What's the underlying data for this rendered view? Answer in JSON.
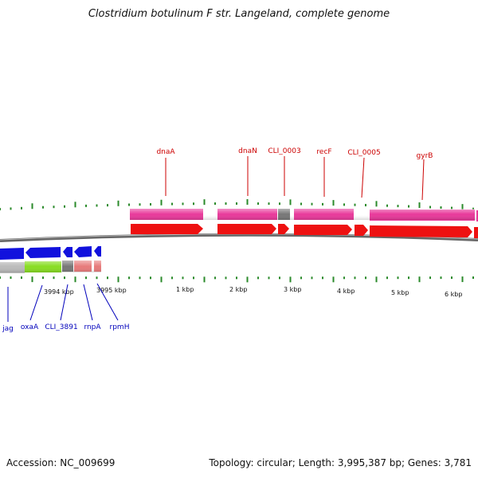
{
  "title": "Clostridium botulinum F str. Langeland, complete genome",
  "footer": {
    "accession": "Accession: NC_009699",
    "stats": "Topology: circular; Length: 3,995,387 bp; Genes: 3,781"
  },
  "colors": {
    "forward_gene": "#e8399a",
    "forward_cds": "#ee1111",
    "reverse_cds": "#1111dd",
    "reverse_gene": "#bbbbbb",
    "other_gene": "#88dd22",
    "pseudo_gene": "#777777",
    "rna_gene": "#e77a7a",
    "tick": "#2a8a2a",
    "label_forward": "#cc0000",
    "label_reverse": "#0000bb",
    "backbone": "#777777"
  },
  "scale_labels": [
    "3994 kbp",
    "3995 kbp",
    "1 kbp",
    "2 kbp",
    "3 kbp",
    "4 kbp",
    "5 kbp",
    "6 kbp"
  ],
  "forward_genes": [
    {
      "name": "dnaA"
    },
    {
      "name": "dnaN"
    },
    {
      "name": "CLI_0003"
    },
    {
      "name": "recF"
    },
    {
      "name": "CLI_0005"
    },
    {
      "name": "gyrB"
    }
  ],
  "reverse_genes": [
    {
      "name": "jag"
    },
    {
      "name": "oxaA"
    },
    {
      "name": "CLI_3891"
    },
    {
      "name": "rnpA"
    },
    {
      "name": "rpmH"
    }
  ]
}
